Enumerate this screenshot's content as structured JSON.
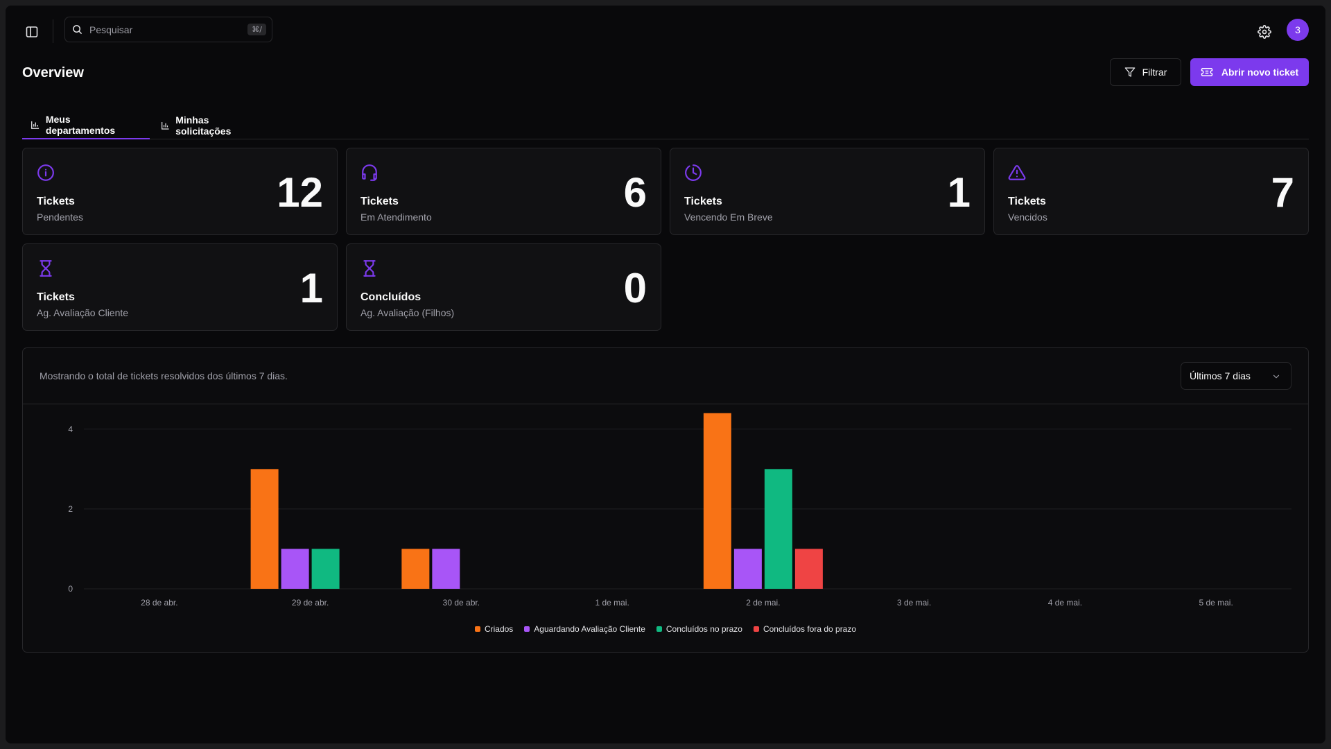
{
  "search": {
    "placeholder": "Pesquisar",
    "shortcut": "⌘/"
  },
  "user": {
    "avatar_label": "3"
  },
  "header": {
    "title": "Overview",
    "filter_label": "Filtrar",
    "new_ticket_label": "Abrir novo ticket"
  },
  "tabs": [
    {
      "label": "Meus departamentos"
    },
    {
      "label": "Minhas solicitações"
    }
  ],
  "cards": [
    {
      "icon": "info-icon",
      "title": "Tickets",
      "subtitle": "Pendentes",
      "value": "12"
    },
    {
      "icon": "headset-icon",
      "title": "Tickets",
      "subtitle": "Em Atendimento",
      "value": "6"
    },
    {
      "icon": "clock-pie-icon",
      "title": "Tickets",
      "subtitle": "Vencendo Em Breve",
      "value": "1"
    },
    {
      "icon": "warning-icon",
      "title": "Tickets",
      "subtitle": "Vencidos",
      "value": "7"
    },
    {
      "icon": "hourglass-icon",
      "title": "Tickets",
      "subtitle": "Ag. Avaliação Cliente",
      "value": "1"
    },
    {
      "icon": "hourglass-icon",
      "title": "Concluídos",
      "subtitle": "Ag. Avaliação (Filhos)",
      "value": "0"
    }
  ],
  "panel": {
    "description": "Mostrando o total de tickets resolvidos dos últimos 7 dias.",
    "range_label": "Últimos 7 dias"
  },
  "colors": {
    "accent": "#7c3aed",
    "background": "#09090b",
    "border": "#27272a"
  },
  "chart_data": {
    "type": "bar",
    "categories": [
      "28 de abr.",
      "29 de abr.",
      "30 de abr.",
      "1 de mai.",
      "2 de mai.",
      "3 de mai.",
      "4 de mai.",
      "5 de mai."
    ],
    "series": [
      {
        "name": "Criados",
        "color": "#f97316",
        "values": [
          0,
          3,
          1,
          0,
          4.4,
          0,
          0,
          0
        ]
      },
      {
        "name": "Aguardando Avaliação Cliente",
        "color": "#a855f7",
        "values": [
          0,
          1,
          1,
          0,
          1,
          0,
          0,
          0
        ]
      },
      {
        "name": "Concluídos no prazo",
        "color": "#10b981",
        "values": [
          0,
          1,
          0,
          0,
          3,
          0,
          0,
          0
        ]
      },
      {
        "name": "Concluídos fora do prazo",
        "color": "#ef4444",
        "values": [
          0,
          0,
          0,
          0,
          1,
          0,
          0,
          0
        ]
      }
    ],
    "yticks": [
      "0",
      "2",
      "4"
    ],
    "ylim": [
      0,
      4.5
    ],
    "grid": true,
    "legend": "bottom-center"
  }
}
